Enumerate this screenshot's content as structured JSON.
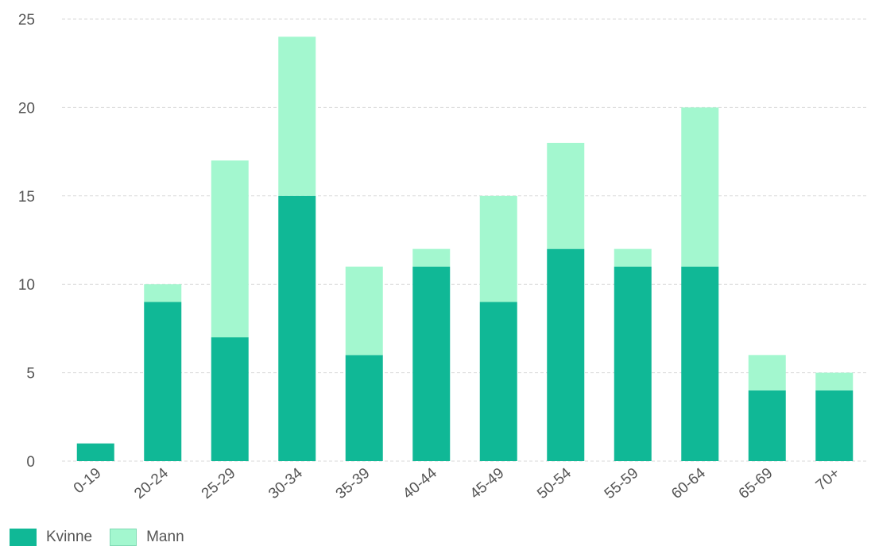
{
  "chart_data": {
    "type": "bar",
    "stacked": true,
    "categories": [
      "0-19",
      "20-24",
      "25-29",
      "30-34",
      "35-39",
      "40-44",
      "45-49",
      "50-54",
      "55-59",
      "60-64",
      "65-69",
      "70+"
    ],
    "series": [
      {
        "name": "Kvinne",
        "color": "#10b896",
        "values": [
          1,
          9,
          7,
          15,
          6,
          11,
          9,
          12,
          11,
          11,
          4,
          4
        ]
      },
      {
        "name": "Mann",
        "color": "#a3f7cf",
        "values": [
          0,
          1,
          10,
          9,
          5,
          1,
          6,
          6,
          1,
          9,
          2,
          1
        ]
      }
    ],
    "y_ticks": [
      "0",
      "5",
      "10",
      "15",
      "20",
      "25"
    ],
    "ylim": [
      0,
      25
    ],
    "grid": true,
    "legend_position": "bottom-left"
  }
}
